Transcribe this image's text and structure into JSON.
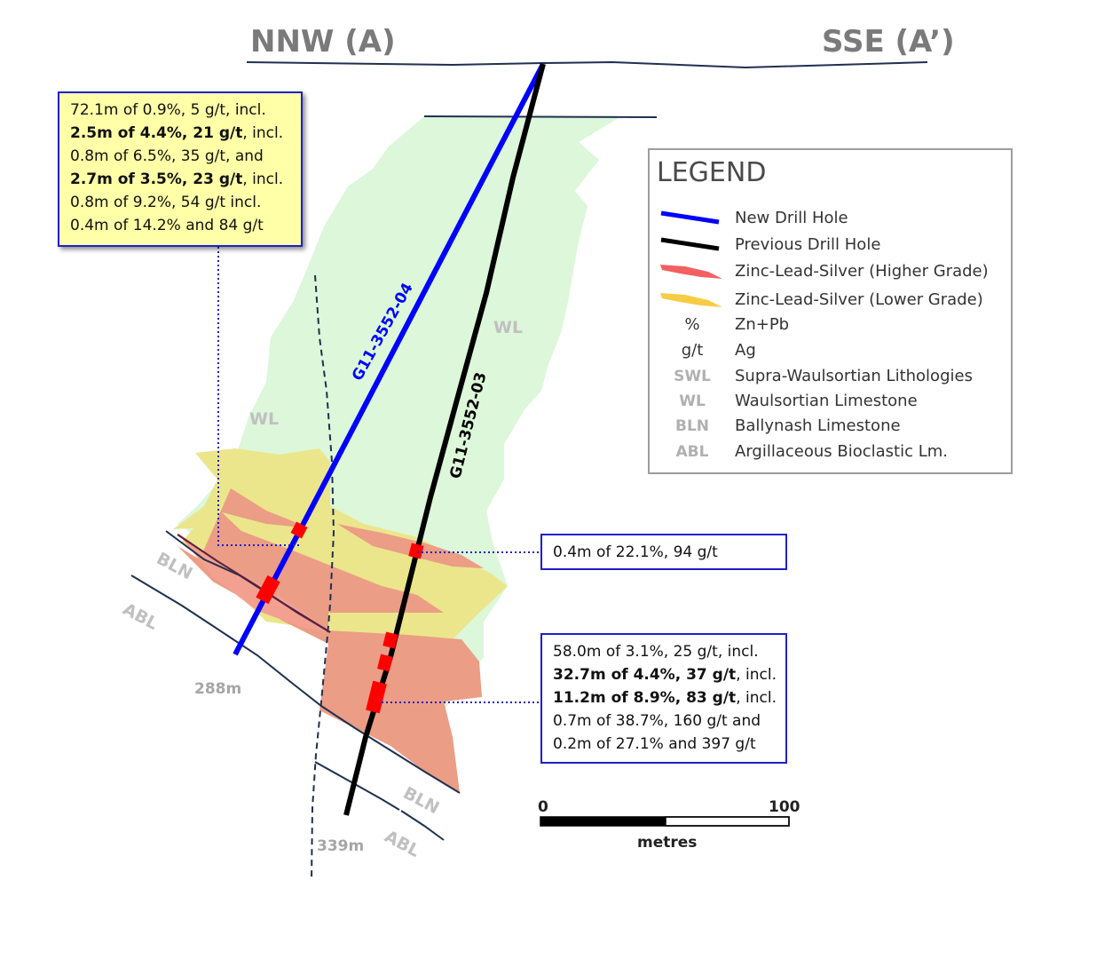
{
  "direction": {
    "left": "NNW (A)",
    "right": "SSE (A’)"
  },
  "units": {
    "wl_left": "WL",
    "wl_right": "WL",
    "bln_upper": "BLN",
    "abl_upper": "ABL",
    "bln_lower": "BLN",
    "abl_lower": "ABL"
  },
  "holes": {
    "new": "G11-3552-04",
    "previous": "G11-3552-03"
  },
  "depths": {
    "new_hole": "288m",
    "previous_hole": "339m"
  },
  "callouts": {
    "top_left": [
      {
        "text": "72.1m of 0.9%, 5 g/t, incl.",
        "bold": false
      },
      {
        "text": "2.5m of 4.4%, 21 g/t",
        "bold": true,
        "suffix": ", incl."
      },
      {
        "text": "0.8m of 6.5%, 35 g/t, and",
        "bold": false
      },
      {
        "text": "2.7m of 3.5%, 23 g/t",
        "bold": true,
        "suffix": ", incl."
      },
      {
        "text": "0.8m of 9.2%, 54 g/t incl.",
        "bold": false
      },
      {
        "text": "0.4m of 14.2% and 84 g/t",
        "bold": false
      }
    ],
    "middle_right": "0.4m of 22.1%, 94 g/t",
    "bottom_right": [
      {
        "text": "58.0m of 3.1%, 25 g/t, incl.",
        "bold": false
      },
      {
        "text": "32.7m of 4.4%, 37 g/t",
        "bold": true,
        "suffix": ", incl."
      },
      {
        "text": "11.2m of 8.9%, 83 g/t",
        "bold": true,
        "suffix": ", incl."
      },
      {
        "text": "0.7m of 38.7%, 160 g/t and",
        "bold": false
      },
      {
        "text": "0.2m of 27.1% and 397 g/t",
        "bold": false
      }
    ]
  },
  "legend": {
    "title": "LEGEND",
    "items": [
      {
        "symbol": "line",
        "color": "#0000ff",
        "label": "New Drill Hole"
      },
      {
        "symbol": "line",
        "color": "#000000",
        "label": "Previous Drill Hole"
      },
      {
        "symbol": "swatch",
        "color": "#f26060",
        "label": "Zinc-Lead-Silver (Higher Grade)"
      },
      {
        "symbol": "swatch",
        "color": "#f7cc45",
        "label": "Zinc-Lead-Silver (Lower Grade)"
      },
      {
        "symbol": "text",
        "code": "%",
        "label": "Zn+Pb"
      },
      {
        "symbol": "text",
        "code": "g/t",
        "label": "Ag"
      },
      {
        "symbol": "code",
        "code": "SWL",
        "label": "Supra-Waulsortian Lithologies"
      },
      {
        "symbol": "code",
        "code": "WL",
        "label": "Waulsortian Limestone"
      },
      {
        "symbol": "code",
        "code": "BLN",
        "label": "Ballynash Limestone"
      },
      {
        "symbol": "code",
        "code": "ABL",
        "label": "Argillaceous Bioclastic Lm."
      }
    ]
  },
  "scale": {
    "min": "0",
    "max": "100",
    "unit": "metres"
  },
  "colors": {
    "wl_fill": "#dcf7d9",
    "lower_grade": "#ebe68c",
    "higher_grade": "#eb9d85",
    "new_hole": "#0000ff",
    "previous_hole": "#000000",
    "intercept": "#ff0000",
    "callout_border": "#1f1fcc"
  }
}
